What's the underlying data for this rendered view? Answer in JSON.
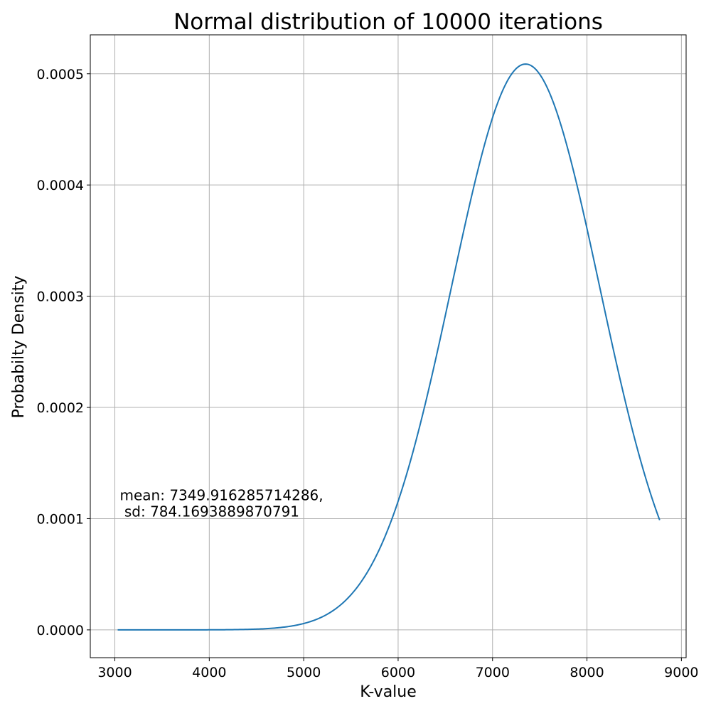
{
  "chart_data": {
    "type": "line",
    "title": "Normal distribution of 10000 iterations",
    "xlabel": "K-value",
    "ylabel": "Probabilty Density",
    "xlim": [
      2740,
      9050
    ],
    "ylim": [
      -2.5e-05,
      0.000535
    ],
    "x_ticks": [
      3000,
      4000,
      5000,
      6000,
      7000,
      8000,
      9000
    ],
    "x_tick_labels": [
      "3000",
      "4000",
      "5000",
      "6000",
      "7000",
      "8000",
      "9000"
    ],
    "y_ticks": [
      0.0,
      0.0001,
      0.0002,
      0.0003,
      0.0004,
      0.0005
    ],
    "y_tick_labels": [
      "0.0000",
      "0.0001",
      "0.0002",
      "0.0003",
      "0.0004",
      "0.0005"
    ],
    "grid": true,
    "series": [
      {
        "color": "#1f77b4",
        "distribution": "normal",
        "mean": 7349.916285714286,
        "sd": 784.1693889870791,
        "x_range": [
          3030,
          8770
        ]
      }
    ],
    "annotation": {
      "lines": [
        "mean: 7349.916285714286,",
        " sd: 784.1693889870791"
      ],
      "x": 3030,
      "y": 0.0001
    }
  }
}
